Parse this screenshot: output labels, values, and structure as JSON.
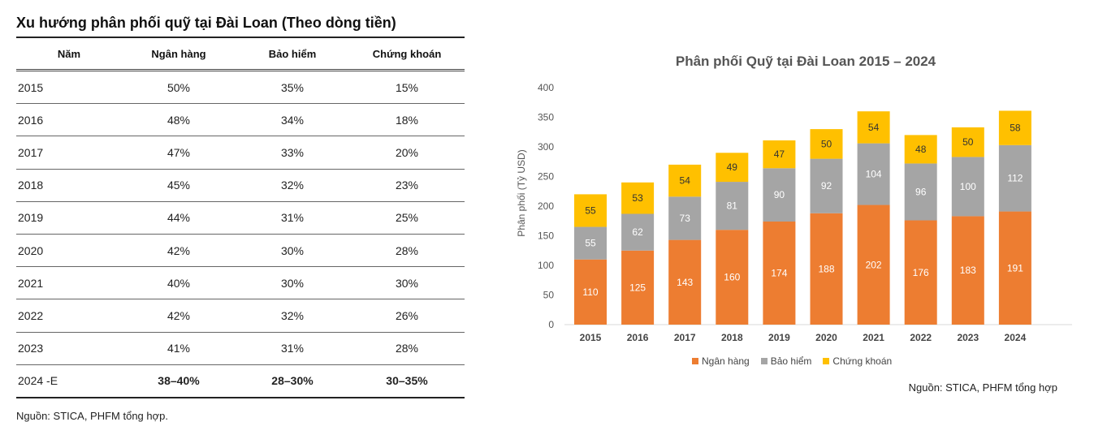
{
  "table": {
    "title": "Xu hướng phân phối quỹ tại Đài Loan (Theo dòng tiền)",
    "headers": [
      "Năm",
      "Ngân hàng",
      "Bảo hiểm",
      "Chứng khoán"
    ],
    "rows": [
      [
        "2015",
        "50%",
        "35%",
        "15%"
      ],
      [
        "2016",
        "48%",
        "34%",
        "18%"
      ],
      [
        "2017",
        "47%",
        "33%",
        "20%"
      ],
      [
        "2018",
        "45%",
        "32%",
        "23%"
      ],
      [
        "2019",
        "44%",
        "31%",
        "25%"
      ],
      [
        "2020",
        "42%",
        "30%",
        "28%"
      ],
      [
        "2021",
        "40%",
        "30%",
        "30%"
      ],
      [
        "2022",
        "42%",
        "32%",
        "26%"
      ],
      [
        "2023",
        "41%",
        "31%",
        "28%"
      ],
      [
        "2024 -E",
        "38–40%",
        "28–30%",
        "30–35%"
      ]
    ],
    "source": "Nguồn: STICA, PHFM tổng hợp."
  },
  "colors": {
    "bank": "#ED7D31",
    "insurance": "#A5A5A5",
    "securities": "#FFC000"
  },
  "chart_data": {
    "type": "bar",
    "stacked": true,
    "title": "Phân phối Quỹ tại Đài Loan 2015 – 2024",
    "xlabel": "",
    "ylabel": "Phân phối (Tỷ USD)",
    "ylim": [
      0,
      400
    ],
    "yticks": [
      0,
      50,
      100,
      150,
      200,
      250,
      300,
      350,
      400
    ],
    "categories": [
      "2015",
      "2016",
      "2017",
      "2018",
      "2019",
      "2020",
      "2021",
      "2022",
      "2023",
      "2024"
    ],
    "series": [
      {
        "name": "Ngân hàng",
        "values": [
          110,
          125,
          143,
          160,
          174,
          188,
          202,
          176,
          183,
          191
        ]
      },
      {
        "name": "Bảo hiểm",
        "values": [
          55,
          62,
          73,
          81,
          90,
          92,
          104,
          96,
          100,
          112
        ]
      },
      {
        "name": "Chứng khoán",
        "values": [
          55,
          53,
          54,
          49,
          47,
          50,
          54,
          48,
          50,
          58
        ]
      }
    ],
    "legend": "bottom",
    "grid": false,
    "source": "Nguồn: STICA, PHFM tổng hợp"
  }
}
